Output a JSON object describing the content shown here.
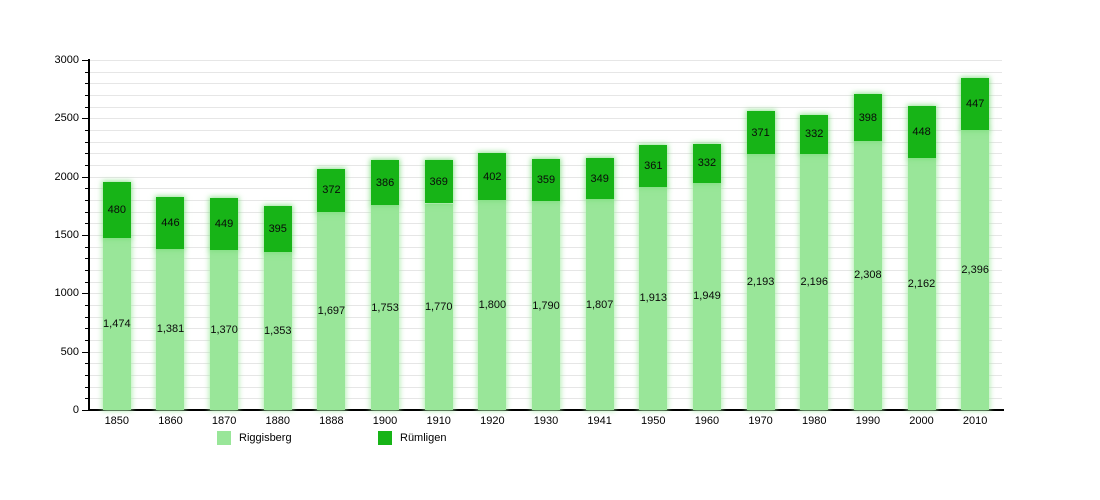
{
  "page": {
    "background_color": "#ffffff",
    "axis_color": "#000000",
    "grid_color": "#e6e6e6",
    "label_color": "#000000"
  },
  "chart_data": {
    "type": "bar",
    "stacked": true,
    "title": "",
    "xlabel": "",
    "ylabel": "",
    "categories": [
      "1850",
      "1860",
      "1870",
      "1880",
      "1888",
      "1900",
      "1910",
      "1920",
      "1930",
      "1941",
      "1950",
      "1960",
      "1970",
      "1980",
      "1990",
      "2000",
      "2010"
    ],
    "series": [
      {
        "name": "Riggisberg",
        "color": "#99E699",
        "values": [
          1474,
          1381,
          1370,
          1353,
          1697,
          1753,
          1770,
          1800,
          1790,
          1807,
          1913,
          1949,
          2193,
          2196,
          2308,
          2162,
          2396
        ]
      },
      {
        "name": "Rümligen",
        "color": "#17B417",
        "values": [
          480,
          446,
          449,
          395,
          372,
          386,
          369,
          402,
          359,
          349,
          361,
          332,
          371,
          332,
          398,
          448,
          447
        ]
      }
    ],
    "ylim": [
      0,
      3000
    ],
    "yticks": [
      0,
      500,
      1000,
      1500,
      2000,
      2500,
      3000
    ],
    "minor_tick_step": 100,
    "grid": "horizontal, every 100 units",
    "legend_position": "bottom",
    "value_labels": "each segment labeled at its center, thousands separated by comma"
  }
}
